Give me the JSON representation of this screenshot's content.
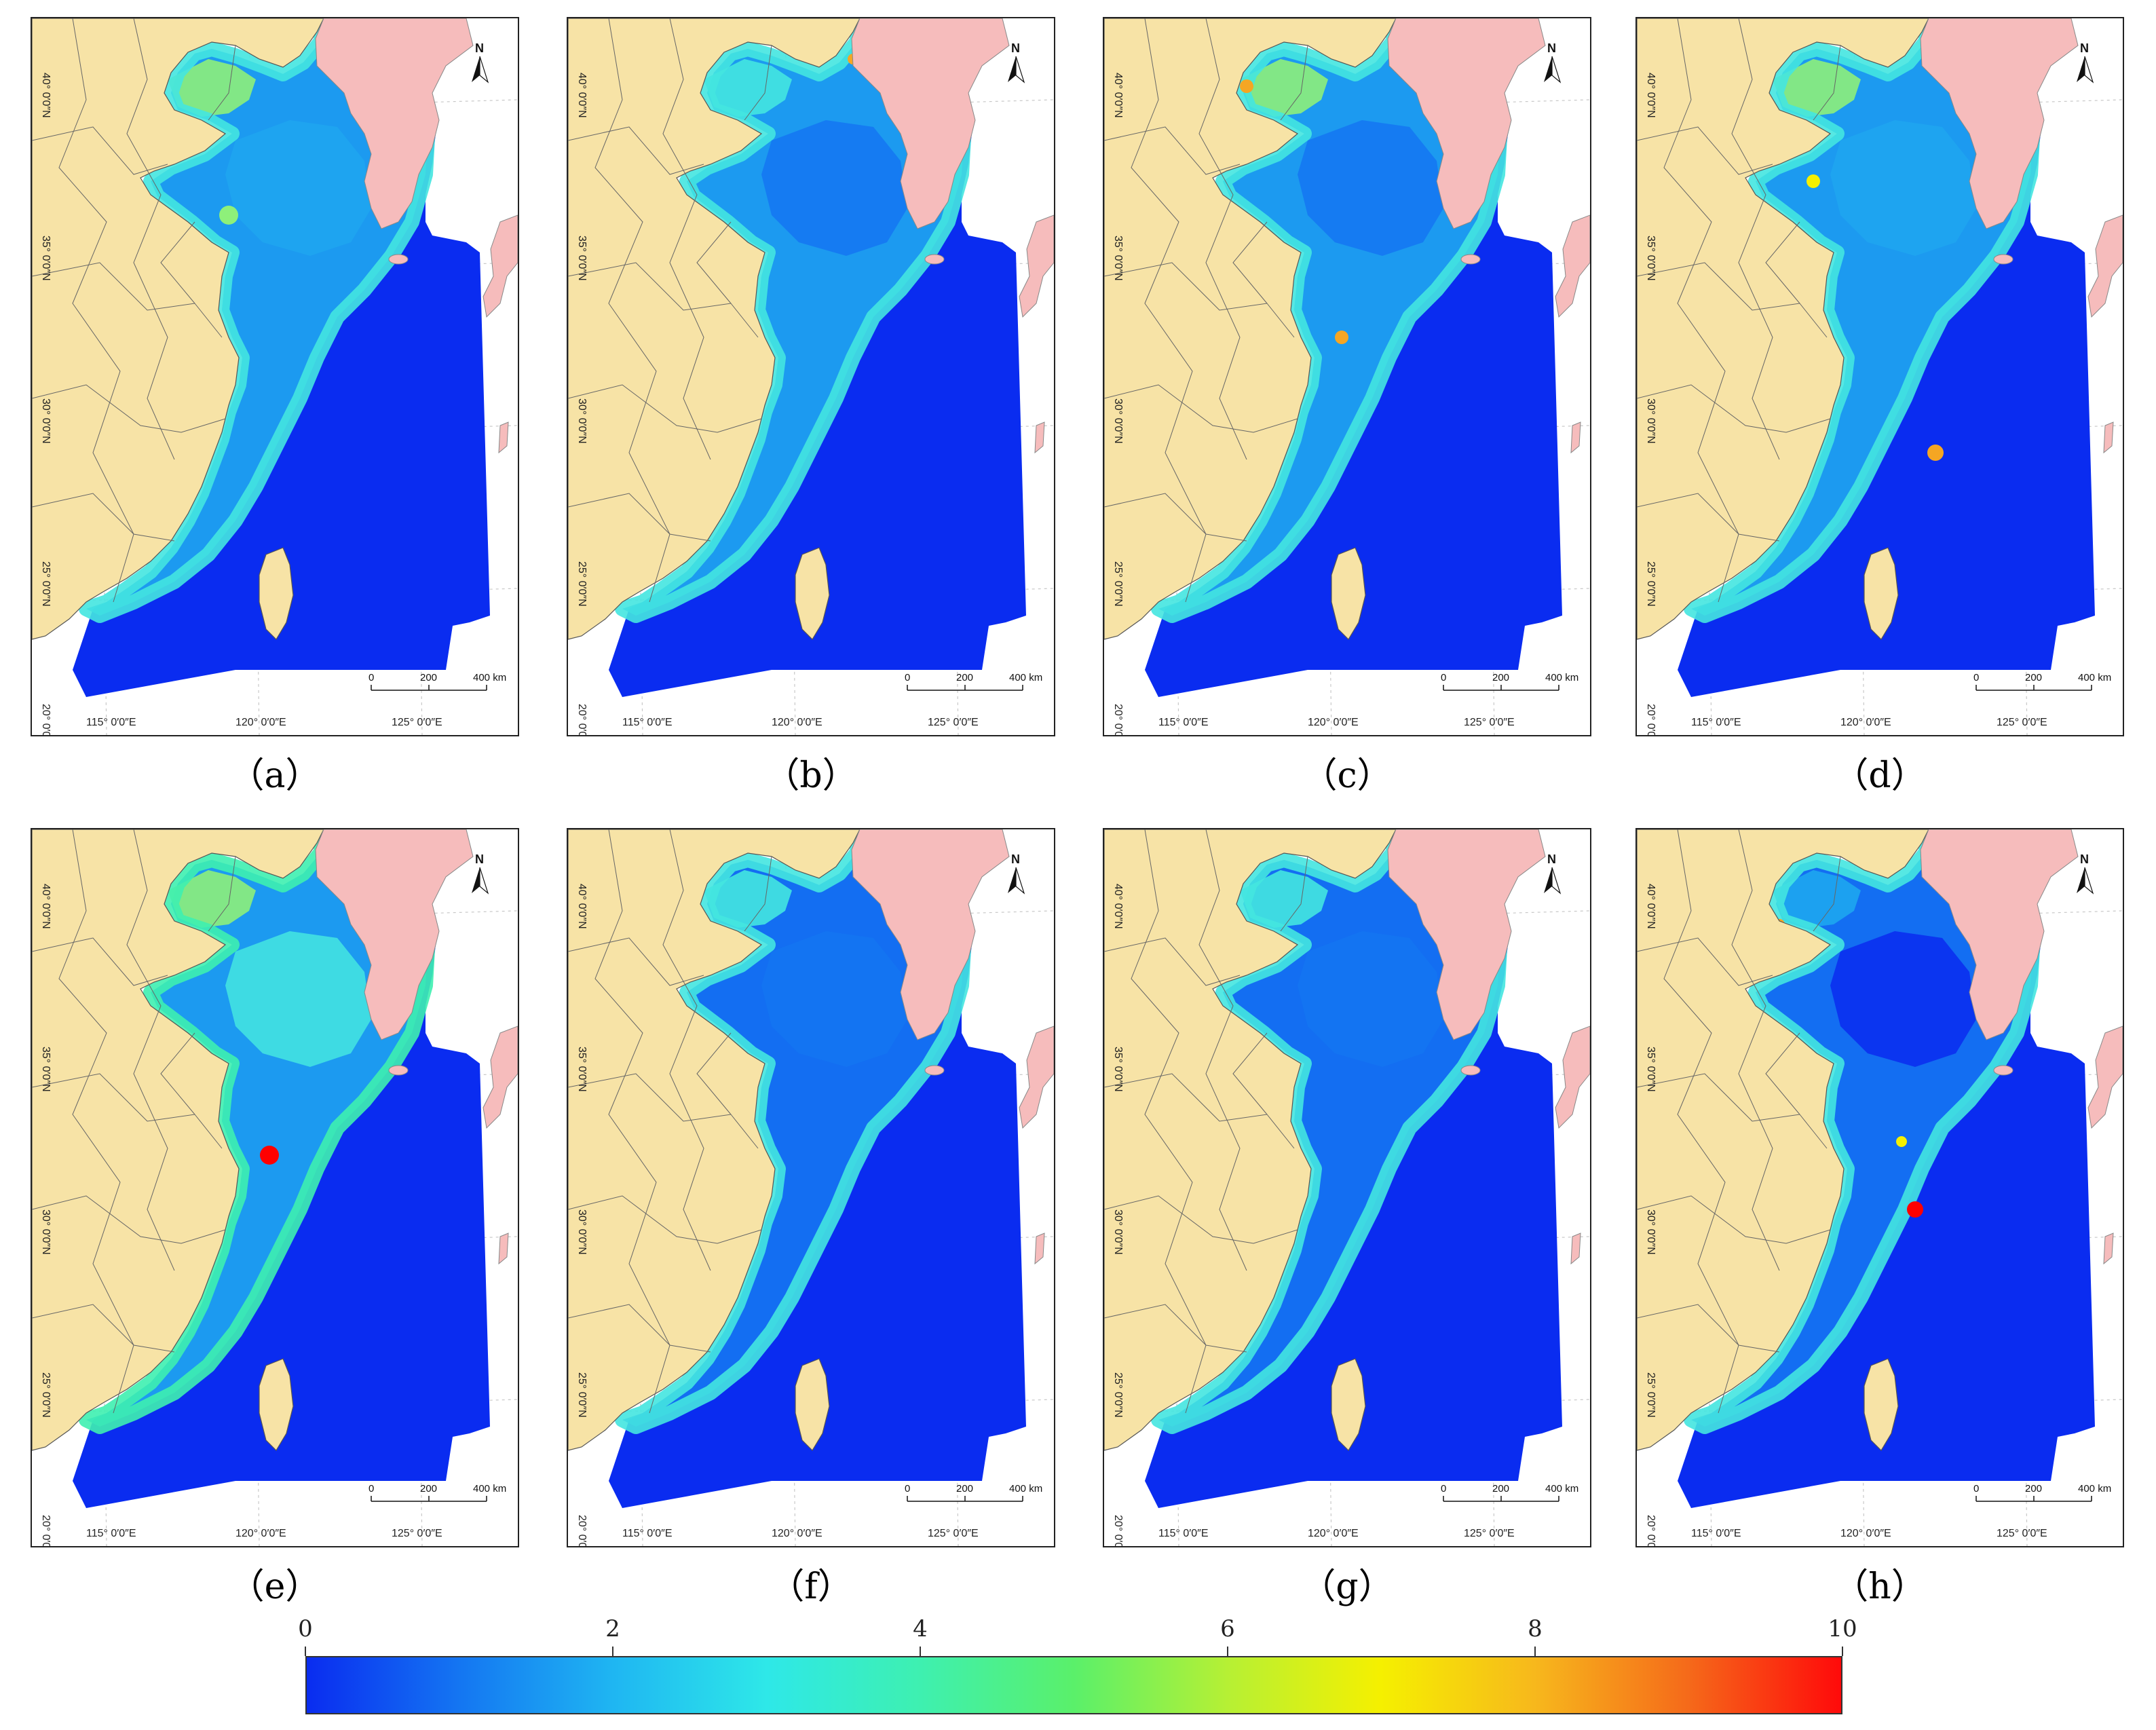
{
  "panels": [
    {
      "id": "a",
      "label": "（a）",
      "variant": 0
    },
    {
      "id": "b",
      "label": "（b）",
      "variant": 1
    },
    {
      "id": "c",
      "label": "（c）",
      "variant": 2
    },
    {
      "id": "d",
      "label": "（d）",
      "variant": 3
    },
    {
      "id": "e",
      "label": "（e）",
      "variant": 4
    },
    {
      "id": "f",
      "label": "（f）",
      "variant": 5
    },
    {
      "id": "g",
      "label": "（g）",
      "variant": 6
    },
    {
      "id": "h",
      "label": "（h）",
      "variant": 7
    }
  ],
  "map": {
    "lon_labels": [
      "115° 0′0″E",
      "120° 0′0″E",
      "125° 0′0″E"
    ],
    "lat_labels": [
      "20° 0′0″N",
      "25° 0′0″N",
      "30° 0′0″N",
      "35° 0′0″N",
      "40° 0′0″N"
    ],
    "north_label": "N",
    "scale_labels": [
      "0",
      "200",
      "400 km"
    ]
  },
  "colors": {
    "china_land": "#f7e3a6",
    "korea_japan_land": "#f6bcbc",
    "low": "#0a2cf0",
    "mid_low": "#1ea6f0",
    "mid": "#44e6e0",
    "mid_high": "#8ef07a",
    "high": "#f5a623",
    "max": "#ff0000"
  },
  "colorbar": {
    "min": 0,
    "max": 10,
    "ticks": [
      "0",
      "2",
      "4",
      "6",
      "8",
      "10"
    ],
    "tick_values": [
      0,
      2,
      4,
      6,
      8,
      10
    ],
    "stops": [
      "#0a2cf0",
      "#1476f2",
      "#1fb6f2",
      "#2ee8e8",
      "#3ef0b0",
      "#5af06a",
      "#b6f034",
      "#f5f000",
      "#f7b81c",
      "#f56a1a",
      "#ff0a0a"
    ]
  }
}
